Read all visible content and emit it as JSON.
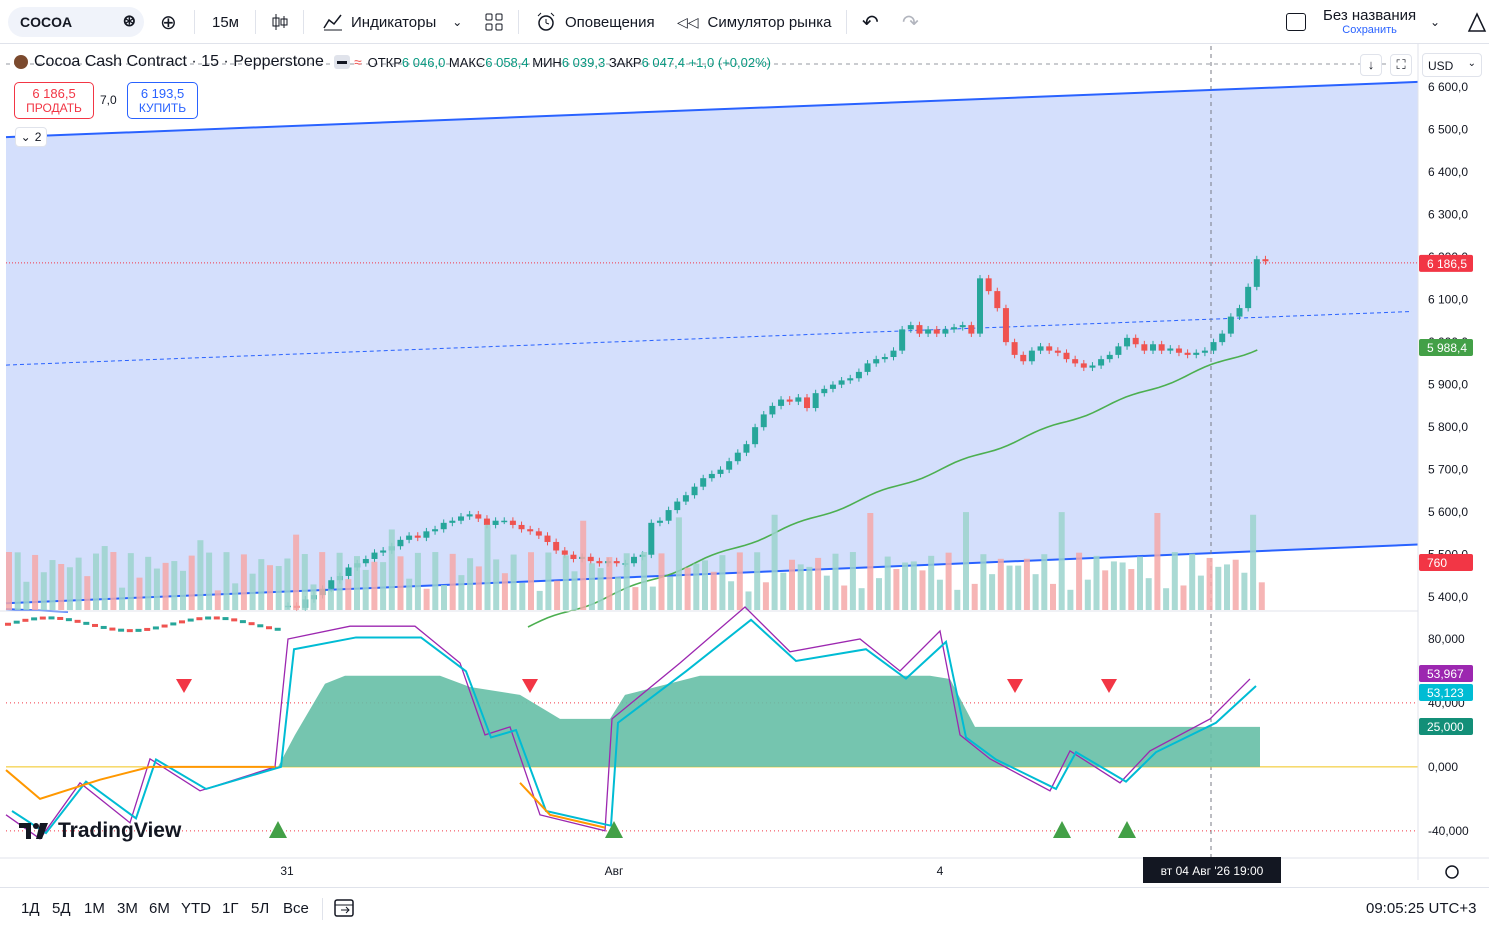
{
  "toolbar": {
    "symbol": "COCOA",
    "interval": "15м",
    "indicators": "Индикаторы",
    "alerts": "Оповещения",
    "replay": "Симулятор рынка",
    "layout_name": "Без названия",
    "save": "Сохранить"
  },
  "legend": {
    "title": "Cocoa Cash Contract · 15 · Pepperstone",
    "open_label": "ОТКР",
    "open": "6 046,0",
    "high_label": "МАКС",
    "high": "6 058,4",
    "low_label": "МИН",
    "low": "6 039,3",
    "close_label": "ЗАКР",
    "close": "6 047,4",
    "change": "+1,0 (+0,02%)",
    "sell_price": "6 186,5",
    "sell_label": "ПРОДАТЬ",
    "spread": "7,0",
    "buy_price": "6 193,5",
    "buy_label": "КУПИТЬ",
    "indicators_count": "2",
    "currency": "USD"
  },
  "chart_data": {
    "type": "candlestick",
    "price_axis": [
      "6 600,0",
      "6 500,0",
      "6 400,0",
      "6 300,0",
      "6 200,0",
      "6 100,0",
      "6 000,0",
      "5 900,0",
      "5 800,0",
      "5 700,0",
      "5 600,0",
      "5 500,0",
      "5 400,0"
    ],
    "price_ylim": [
      5370,
      6640
    ],
    "osc_axis": [
      "80,000",
      "40,000",
      "0,000",
      "-40,000"
    ],
    "osc_ylim": [
      -52,
      95
    ],
    "time_labels": [
      {
        "label": "31",
        "i": 0.0
      },
      {
        "label": "Авг",
        "i": 1.0
      },
      {
        "label": "4",
        "i": 2.0
      }
    ],
    "crosshair_time": "вт 04 Авг '26   19:00",
    "badges": {
      "price_last": "6 186,5",
      "ma": "5 988,4",
      "volume": "760",
      "osc1": "53,967",
      "osc2": "53,123",
      "osc3": "25,000"
    },
    "colors": {
      "up": "#26a69a",
      "down": "#ef5350",
      "channel": "#2962ff",
      "fill": "#d4dffc",
      "ma": "#4caf50",
      "vol_up": "#9bd3cc",
      "vol_down": "#f5a8a8",
      "osc_fill": "#66bfa6",
      "osc_a": "#9c27b0",
      "osc_b": "#00bcd4",
      "osc_c": "#ff9800"
    }
  },
  "footer": {
    "ranges": [
      "1Д",
      "5Д",
      "1М",
      "3М",
      "6М",
      "YTD",
      "1Г",
      "5Л",
      "Все"
    ],
    "clock": "09:05:25 UTC+3"
  }
}
